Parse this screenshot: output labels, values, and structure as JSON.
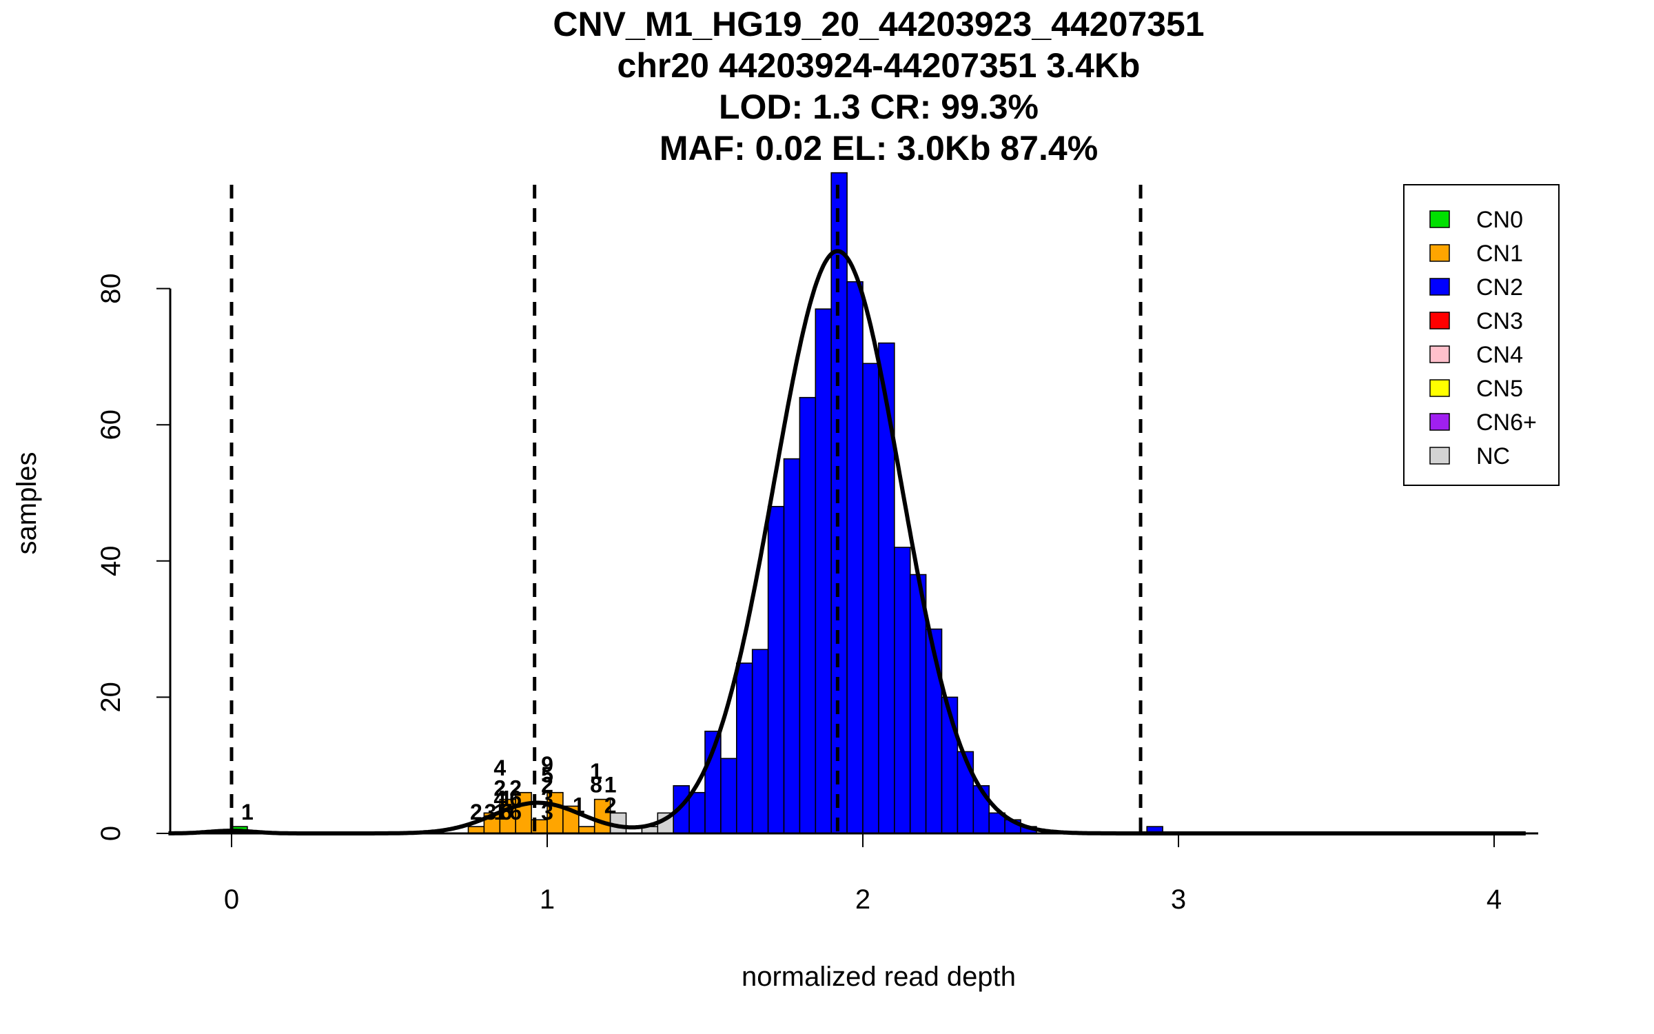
{
  "chart_data": {
    "type": "histogram",
    "title_lines": [
      "CNV_M1_HG19_20_44203923_44207351",
      "chr20 44203924-44207351 3.4Kb",
      "LOD: 1.3 CR: 99.3%",
      "MAF: 0.02 EL: 3.0Kb 87.4%"
    ],
    "xlabel": "normalized read depth",
    "ylabel": "samples",
    "xlim": [
      -0.2,
      4.1
    ],
    "ylim": [
      0,
      97
    ],
    "x_ticks": [
      0,
      1,
      2,
      3,
      4
    ],
    "y_ticks": [
      0,
      20,
      40,
      60,
      80
    ],
    "bin_width": 0.05,
    "bins": [
      {
        "x0": 0.0,
        "count": 1,
        "class": "CN0"
      },
      {
        "x0": 0.25,
        "count": 0,
        "class": "CN1"
      },
      {
        "x0": 0.75,
        "count": 1,
        "class": "CN1"
      },
      {
        "x0": 0.8,
        "count": 3,
        "class": "CN1"
      },
      {
        "x0": 0.85,
        "count": 5,
        "class": "CN1"
      },
      {
        "x0": 0.9,
        "count": 6,
        "class": "CN1"
      },
      {
        "x0": 0.95,
        "count": 2,
        "class": "CN1"
      },
      {
        "x0": 1.0,
        "count": 6,
        "class": "CN1"
      },
      {
        "x0": 1.05,
        "count": 4,
        "class": "CN1"
      },
      {
        "x0": 1.1,
        "count": 1,
        "class": "CN1"
      },
      {
        "x0": 1.15,
        "count": 5,
        "class": "CN1"
      },
      {
        "x0": 1.2,
        "count": 3,
        "class": "NC"
      },
      {
        "x0": 1.3,
        "count": 1,
        "class": "NC"
      },
      {
        "x0": 1.35,
        "count": 3,
        "class": "NC"
      },
      {
        "x0": 1.4,
        "count": 7,
        "class": "CN2"
      },
      {
        "x0": 1.45,
        "count": 6,
        "class": "CN2"
      },
      {
        "x0": 1.5,
        "count": 15,
        "class": "CN2"
      },
      {
        "x0": 1.55,
        "count": 11,
        "class": "CN2"
      },
      {
        "x0": 1.6,
        "count": 25,
        "class": "CN2"
      },
      {
        "x0": 1.65,
        "count": 27,
        "class": "CN2"
      },
      {
        "x0": 1.7,
        "count": 48,
        "class": "CN2"
      },
      {
        "x0": 1.75,
        "count": 55,
        "class": "CN2"
      },
      {
        "x0": 1.8,
        "count": 64,
        "class": "CN2"
      },
      {
        "x0": 1.85,
        "count": 77,
        "class": "CN2"
      },
      {
        "x0": 1.9,
        "count": 97,
        "class": "CN2"
      },
      {
        "x0": 1.95,
        "count": 81,
        "class": "CN2"
      },
      {
        "x0": 2.0,
        "count": 69,
        "class": "CN2"
      },
      {
        "x0": 2.05,
        "count": 72,
        "class": "CN2"
      },
      {
        "x0": 2.1,
        "count": 42,
        "class": "CN2"
      },
      {
        "x0": 2.15,
        "count": 38,
        "class": "CN2"
      },
      {
        "x0": 2.2,
        "count": 30,
        "class": "CN2"
      },
      {
        "x0": 2.25,
        "count": 20,
        "class": "CN2"
      },
      {
        "x0": 2.3,
        "count": 12,
        "class": "CN2"
      },
      {
        "x0": 2.35,
        "count": 7,
        "class": "CN2"
      },
      {
        "x0": 2.4,
        "count": 3,
        "class": "CN2"
      },
      {
        "x0": 2.45,
        "count": 2,
        "class": "CN2"
      },
      {
        "x0": 2.5,
        "count": 1,
        "class": "CN2"
      },
      {
        "x0": 2.9,
        "count": 1,
        "class": "CN2"
      },
      {
        "x0": 3.0,
        "count": 0,
        "class": "CN2"
      }
    ],
    "count_labels": [
      {
        "x": 0.05,
        "y": 2,
        "text": "1"
      },
      {
        "x": 0.775,
        "y": 2,
        "text": "2"
      },
      {
        "x": 0.82,
        "y": 2,
        "text": "3"
      },
      {
        "x": 0.85,
        "y": 2,
        "text": "1"
      },
      {
        "x": 0.87,
        "y": 2,
        "text": "6"
      },
      {
        "x": 0.85,
        "y": 4,
        "text": "4"
      },
      {
        "x": 0.87,
        "y": 4,
        "text": "1"
      },
      {
        "x": 0.85,
        "y": 5.5,
        "text": "2"
      },
      {
        "x": 0.9,
        "y": 2,
        "text": "6"
      },
      {
        "x": 0.9,
        "y": 4,
        "text": "6"
      },
      {
        "x": 0.9,
        "y": 5.5,
        "text": "2"
      },
      {
        "x": 0.85,
        "y": 8.5,
        "text": "4"
      },
      {
        "x": 1.0,
        "y": 2,
        "text": "3"
      },
      {
        "x": 1.0,
        "y": 4,
        "text": "3"
      },
      {
        "x": 1.0,
        "y": 6,
        "text": "2"
      },
      {
        "x": 1.0,
        "y": 7.5,
        "text": "5"
      },
      {
        "x": 1.0,
        "y": 9,
        "text": "9"
      },
      {
        "x": 1.1,
        "y": 3,
        "text": "1"
      },
      {
        "x": 1.155,
        "y": 6,
        "text": "8"
      },
      {
        "x": 1.155,
        "y": 8,
        "text": "1"
      },
      {
        "x": 1.2,
        "y": 6,
        "text": "1"
      },
      {
        "x": 1.2,
        "y": 3,
        "text": "2"
      }
    ],
    "cn_boundaries": [
      0,
      0.96,
      1.92,
      2.88
    ],
    "fit_curves": [
      {
        "mean": 0.0,
        "sd": 0.07,
        "peak": 0.4
      },
      {
        "mean": 0.97,
        "sd": 0.14,
        "peak": 4.5
      },
      {
        "mean": 1.92,
        "sd": 0.2,
        "peak": 85.5
      }
    ],
    "legend": {
      "position": "top-right",
      "items": [
        {
          "label": "CN0",
          "color": "#00e000"
        },
        {
          "label": "CN1",
          "color": "#ffa500"
        },
        {
          "label": "CN2",
          "color": "#0000ff"
        },
        {
          "label": "CN3",
          "color": "#ff0000"
        },
        {
          "label": "CN4",
          "color": "#ffc0cb"
        },
        {
          "label": "CN5",
          "color": "#ffff00"
        },
        {
          "label": "CN6+",
          "color": "#a020f0"
        },
        {
          "label": "NC",
          "color": "#d3d3d3"
        }
      ]
    },
    "class_colors": {
      "CN0": "#00e000",
      "CN1": "#ffa500",
      "CN2": "#0000ff",
      "CN3": "#ff0000",
      "CN4": "#ffc0cb",
      "CN5": "#ffff00",
      "CN6+": "#a020f0",
      "NC": "#d3d3d3"
    }
  }
}
